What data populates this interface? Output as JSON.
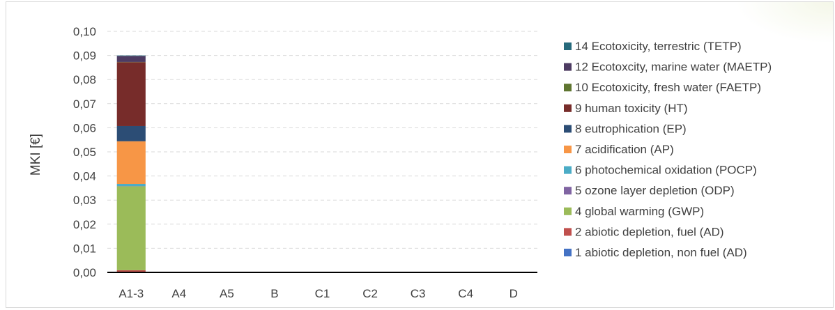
{
  "chart_data": {
    "type": "bar",
    "stacked": true,
    "title": "",
    "xlabel": "",
    "ylabel": "MKI [€]",
    "ylim": [
      0,
      0.1
    ],
    "ytick_step": 0.01,
    "ytick_labels": [
      "0,00",
      "0,01",
      "0,02",
      "0,03",
      "0,04",
      "0,05",
      "0,06",
      "0,07",
      "0,08",
      "0,09",
      "0,10"
    ],
    "grid": true,
    "legend_position": "right",
    "categories": [
      "A1-3",
      "A4",
      "A5",
      "B",
      "C1",
      "C2",
      "C3",
      "C4",
      "D"
    ],
    "series": [
      {
        "name": "1 abiotic depletion, non fuel (AD)",
        "color": "#4472c4",
        "values": [
          0.0002,
          0,
          0,
          0,
          0,
          0,
          0,
          0,
          0
        ]
      },
      {
        "name": "2 abiotic depletion, fuel (AD)",
        "color": "#c0504d",
        "values": [
          0.0007,
          0,
          0,
          0,
          0,
          0,
          0,
          0,
          0
        ]
      },
      {
        "name": "4 global warming (GWP)",
        "color": "#9bbb59",
        "values": [
          0.0348,
          0,
          0,
          0,
          0,
          0,
          0,
          0,
          0
        ]
      },
      {
        "name": "5 ozone layer depletion (ODP)",
        "color": "#8064a2",
        "values": [
          0.0001,
          0,
          0,
          0,
          0,
          0,
          0,
          0,
          0
        ]
      },
      {
        "name": "6 photochemical oxidation (POCP)",
        "color": "#4bacc6",
        "values": [
          0.0009,
          0,
          0,
          0,
          0,
          0,
          0,
          0,
          0
        ]
      },
      {
        "name": "7 acidification (AP)",
        "color": "#f79646",
        "values": [
          0.0177,
          0,
          0,
          0,
          0,
          0,
          0,
          0,
          0
        ]
      },
      {
        "name": "8 eutrophication (EP)",
        "color": "#2c4d75",
        "values": [
          0.0063,
          0,
          0,
          0,
          0,
          0,
          0,
          0,
          0
        ]
      },
      {
        "name": "9 human toxicity (HT)",
        "color": "#772c2a",
        "values": [
          0.0265,
          0,
          0,
          0,
          0,
          0,
          0,
          0,
          0
        ]
      },
      {
        "name": "10 Ecotoxicity, fresh water (FAETP)",
        "color": "#5f7530",
        "values": [
          0.0001,
          0,
          0,
          0,
          0,
          0,
          0,
          0,
          0
        ]
      },
      {
        "name": "12 Ecotoxcity, marine water (MAETP)",
        "color": "#4d3b62",
        "values": [
          0.0025,
          0,
          0,
          0,
          0,
          0,
          0,
          0,
          0
        ]
      },
      {
        "name": "14 Ecotoxicity, terrestric (TETP)",
        "color": "#276a7c",
        "values": [
          0.0002,
          0,
          0,
          0,
          0,
          0,
          0,
          0,
          0
        ]
      }
    ]
  }
}
